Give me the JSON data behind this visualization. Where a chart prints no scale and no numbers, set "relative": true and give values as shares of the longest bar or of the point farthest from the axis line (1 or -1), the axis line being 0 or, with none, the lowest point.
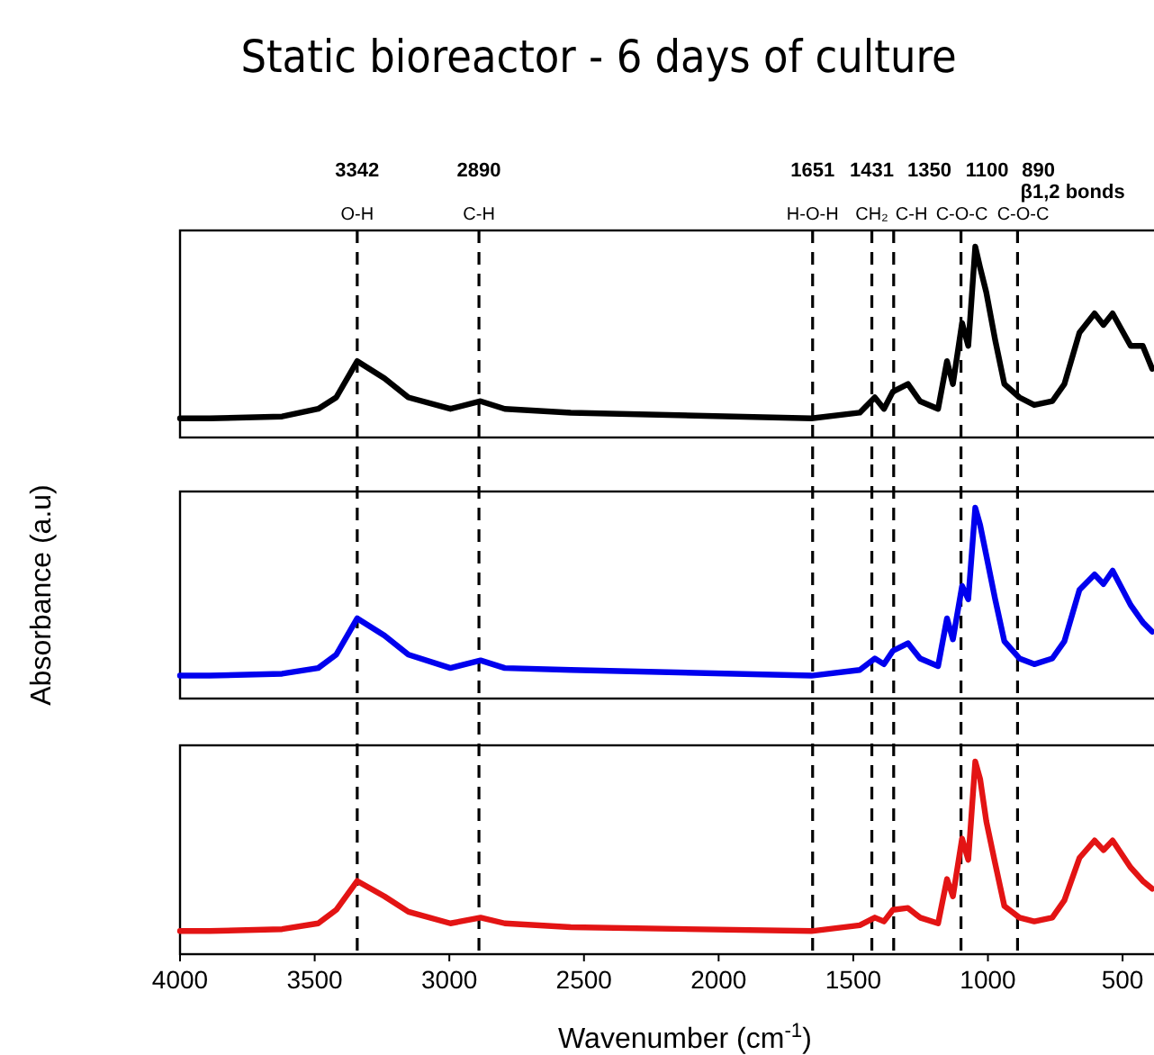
{
  "chart_data": [
    {
      "type": "line",
      "title": "Static bioreactor - 6 days of culture",
      "relative": true,
      "tick_labels": false,
      "xlim": [
        4000,
        390
      ],
      "x": [
        4000,
        3890,
        3621,
        3487,
        3420,
        3342,
        3241,
        3152,
        2996,
        2884,
        2794,
        2549,
        1655,
        1476,
        1420,
        1386,
        1353,
        1297,
        1252,
        1185,
        1152,
        1130,
        1096,
        1073,
        1047,
        1029,
        1006,
        973,
        939,
        883,
        828,
        761,
        716,
        660,
        604,
        571,
        537,
        470,
        425,
        390
      ],
      "series": [
        {
          "color": "#000000",
          "values": [
            0.1,
            0.1,
            0.11,
            0.15,
            0.21,
            0.4,
            0.31,
            0.21,
            0.15,
            0.19,
            0.15,
            0.13,
            0.1,
            0.13,
            0.21,
            0.15,
            0.24,
            0.28,
            0.19,
            0.15,
            0.4,
            0.28,
            0.6,
            0.48,
            1,
            0.89,
            0.76,
            0.51,
            0.28,
            0.21,
            0.17,
            0.19,
            0.28,
            0.55,
            0.65,
            0.59,
            0.65,
            0.48,
            0.48,
            0.36
          ]
        }
      ],
      "ref_lines": [
        {
          "axis": "x",
          "value": 3342,
          "label": "3342",
          "line_style": "dashed"
        },
        {
          "axis": "x",
          "value": 2890,
          "label": "2890",
          "line_style": "dashed"
        },
        {
          "axis": "x",
          "value": 1651,
          "label": "1651",
          "line_style": "dashed"
        },
        {
          "axis": "x",
          "value": 1431,
          "label": "1431",
          "line_style": "dashed"
        },
        {
          "axis": "x",
          "value": 1350,
          "label": "1350",
          "line_style": "dashed"
        },
        {
          "axis": "x",
          "value": 1100,
          "label": "1100",
          "line_style": "dashed"
        },
        {
          "axis": "x",
          "value": 890,
          "label": "890",
          "line_style": "dashed"
        }
      ],
      "annotations": [
        "O-H",
        "C-H",
        "H-O-H",
        "CH₂",
        "C-H",
        "C-O-C",
        "C-O-C",
        "β1,2 bonds"
      ]
    },
    {
      "type": "line",
      "ylabel": "Absorbance (a.u)",
      "relative": true,
      "tick_labels": false,
      "xlim": [
        4000,
        390
      ],
      "x": [
        4000,
        3890,
        3621,
        3487,
        3420,
        3342,
        3241,
        3152,
        2996,
        2884,
        2794,
        2549,
        1655,
        1476,
        1420,
        1386,
        1353,
        1297,
        1252,
        1185,
        1152,
        1130,
        1096,
        1073,
        1047,
        1029,
        1006,
        973,
        939,
        883,
        828,
        761,
        716,
        660,
        604,
        571,
        537,
        470,
        425,
        390
      ],
      "series": [
        {
          "color": "#0000ee",
          "values": [
            0.12,
            0.12,
            0.13,
            0.16,
            0.23,
            0.42,
            0.33,
            0.23,
            0.16,
            0.2,
            0.16,
            0.15,
            0.12,
            0.15,
            0.21,
            0.18,
            0.25,
            0.29,
            0.21,
            0.17,
            0.42,
            0.31,
            0.59,
            0.52,
            1,
            0.91,
            0.75,
            0.52,
            0.3,
            0.21,
            0.18,
            0.21,
            0.3,
            0.57,
            0.65,
            0.6,
            0.67,
            0.49,
            0.4,
            0.35
          ]
        }
      ],
      "ref_lines": [
        {
          "axis": "x",
          "value": 3342,
          "line_style": "dashed"
        },
        {
          "axis": "x",
          "value": 2890,
          "line_style": "dashed"
        },
        {
          "axis": "x",
          "value": 1651,
          "line_style": "dashed"
        },
        {
          "axis": "x",
          "value": 1431,
          "line_style": "dashed"
        },
        {
          "axis": "x",
          "value": 1350,
          "line_style": "dashed"
        },
        {
          "axis": "x",
          "value": 1100,
          "line_style": "dashed"
        },
        {
          "axis": "x",
          "value": 890,
          "line_style": "dashed"
        }
      ]
    },
    {
      "type": "line",
      "xlabel": "Wavenumber (cm$^{-1}$)",
      "relative": true,
      "tick_labels": "x",
      "xlim": [
        4000,
        390
      ],
      "xticks": [
        4000,
        3500,
        3000,
        2500,
        2000,
        1500,
        1000,
        500
      ],
      "x": [
        4000,
        3890,
        3621,
        3487,
        3420,
        3342,
        3241,
        3152,
        2996,
        2884,
        2794,
        2549,
        1655,
        1476,
        1420,
        1386,
        1353,
        1297,
        1252,
        1185,
        1152,
        1130,
        1096,
        1073,
        1047,
        1029,
        1006,
        973,
        939,
        883,
        828,
        761,
        716,
        660,
        604,
        571,
        537,
        470,
        425,
        390
      ],
      "series": [
        {
          "color": "#e31414",
          "values": [
            0.12,
            0.12,
            0.13,
            0.16,
            0.23,
            0.38,
            0.3,
            0.22,
            0.16,
            0.19,
            0.16,
            0.14,
            0.12,
            0.15,
            0.19,
            0.17,
            0.23,
            0.24,
            0.19,
            0.16,
            0.39,
            0.3,
            0.6,
            0.49,
            1,
            0.91,
            0.69,
            0.47,
            0.25,
            0.19,
            0.17,
            0.19,
            0.28,
            0.5,
            0.59,
            0.54,
            0.59,
            0.45,
            0.38,
            0.34
          ]
        }
      ],
      "ref_lines": [
        {
          "axis": "x",
          "value": 3342,
          "line_style": "dashed"
        },
        {
          "axis": "x",
          "value": 2890,
          "line_style": "dashed"
        },
        {
          "axis": "x",
          "value": 1651,
          "line_style": "dashed"
        },
        {
          "axis": "x",
          "value": 1431,
          "line_style": "dashed"
        },
        {
          "axis": "x",
          "value": 1350,
          "line_style": "dashed"
        },
        {
          "axis": "x",
          "value": 1100,
          "line_style": "dashed"
        },
        {
          "axis": "x",
          "value": 890,
          "line_style": "dashed"
        }
      ]
    }
  ]
}
